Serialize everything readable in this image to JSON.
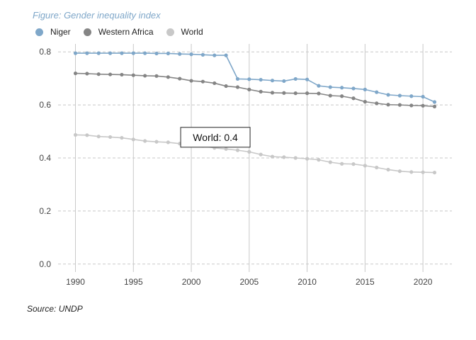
{
  "title": "Figure: Gender inequality index",
  "source": "Source: UNDP",
  "legend_position": "top-left",
  "colors": {
    "Niger": "#7fa7c9",
    "Western Africa": "#858585",
    "World": "#c8c8c8",
    "grid": "#c8c8c8",
    "axis_text": "#444444"
  },
  "annotation": {
    "text": "World: 0.4",
    "x": 2000,
    "y": 0.51
  },
  "chart_data": {
    "type": "line",
    "title": "Figure: Gender inequality index",
    "xlabel": "",
    "ylabel": "",
    "xlim": [
      1988.5,
      2022.5
    ],
    "ylim": [
      -0.03,
      0.83
    ],
    "xticks": [
      1990,
      1995,
      2000,
      2005,
      2010,
      2015,
      2020
    ],
    "yticks": [
      0.0,
      0.2,
      0.4,
      0.6,
      0.8
    ],
    "ytick_labels": [
      "0.0",
      "0.2",
      "0.4",
      "0.6",
      "0.8"
    ],
    "grid": true,
    "x": [
      1990,
      1991,
      1992,
      1993,
      1994,
      1995,
      1996,
      1997,
      1998,
      1999,
      2000,
      2001,
      2002,
      2003,
      2004,
      2005,
      2006,
      2007,
      2008,
      2009,
      2010,
      2011,
      2012,
      2013,
      2014,
      2015,
      2016,
      2017,
      2018,
      2019,
      2020,
      2021
    ],
    "series": [
      {
        "name": "Niger",
        "values": [
          0.795,
          0.795,
          0.795,
          0.795,
          0.795,
          0.795,
          0.795,
          0.794,
          0.794,
          0.792,
          0.791,
          0.789,
          0.787,
          0.787,
          0.698,
          0.697,
          0.695,
          0.692,
          0.69,
          0.698,
          0.696,
          0.672,
          0.667,
          0.665,
          0.662,
          0.658,
          0.648,
          0.638,
          0.635,
          0.633,
          0.631,
          0.611
        ]
      },
      {
        "name": "Western Africa",
        "values": [
          0.719,
          0.718,
          0.716,
          0.715,
          0.714,
          0.712,
          0.71,
          0.709,
          0.705,
          0.699,
          0.691,
          0.688,
          0.682,
          0.671,
          0.667,
          0.658,
          0.65,
          0.646,
          0.645,
          0.644,
          0.644,
          0.643,
          0.635,
          0.633,
          0.625,
          0.612,
          0.606,
          0.601,
          0.6,
          0.598,
          0.597,
          0.594
        ]
      },
      {
        "name": "World",
        "values": [
          0.487,
          0.486,
          0.481,
          0.479,
          0.476,
          0.47,
          0.464,
          0.461,
          0.459,
          0.454,
          0.449,
          0.446,
          0.438,
          0.434,
          0.429,
          0.423,
          0.413,
          0.405,
          0.403,
          0.4,
          0.397,
          0.393,
          0.384,
          0.378,
          0.377,
          0.371,
          0.364,
          0.356,
          0.35,
          0.347,
          0.346,
          0.345
        ]
      }
    ]
  }
}
